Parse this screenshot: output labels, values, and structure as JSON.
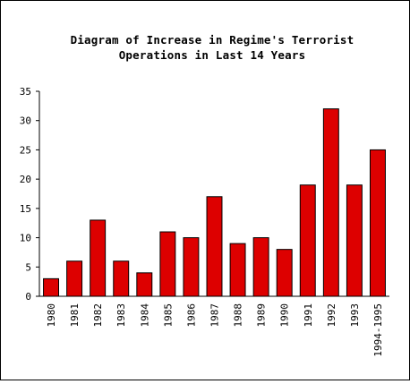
{
  "chart_data": {
    "type": "bar",
    "title_lines": [
      "Diagram of Increase in Regime's Terrorist",
      "Operations in Last 14 Years"
    ],
    "xlabel": "",
    "ylabel": "",
    "categories": [
      "1980",
      "1981",
      "1982",
      "1983",
      "1984",
      "1985",
      "1986",
      "1987",
      "1988",
      "1989",
      "1990",
      "1991",
      "1992",
      "1993",
      "1994-1995"
    ],
    "values": [
      3,
      6,
      13,
      6,
      4,
      11,
      10,
      17,
      9,
      10,
      8,
      19,
      32,
      19,
      25
    ],
    "ylim": [
      0,
      35
    ],
    "yticks": [
      0,
      5,
      10,
      15,
      20,
      25,
      30,
      35
    ],
    "grid": false,
    "legend": "none",
    "bar_color": "#dd0000",
    "bar_outline_color": "#000000"
  }
}
